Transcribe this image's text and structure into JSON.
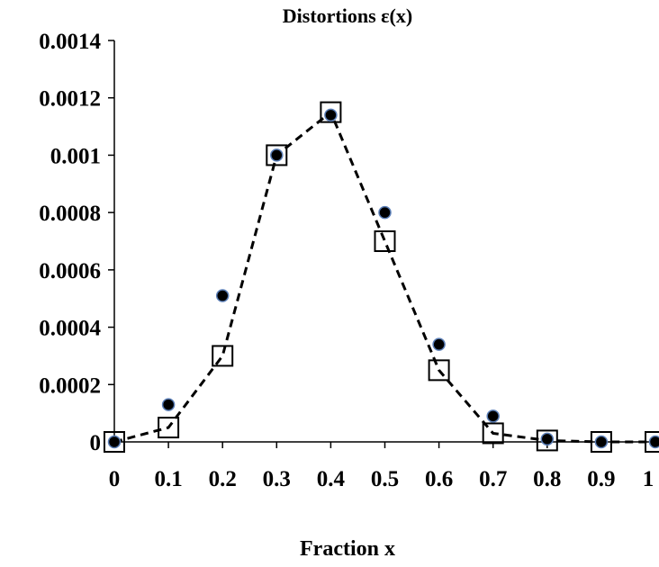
{
  "chart_data": {
    "type": "scatter",
    "title": "Distortions  ε(x)",
    "xlabel": "Fraction x",
    "ylabel": "",
    "xlim": [
      0,
      1
    ],
    "ylim": [
      0,
      0.0014
    ],
    "xticks": [
      "0",
      "0.1",
      "0.2",
      "0.3",
      "0.4",
      "0.5",
      "0.6",
      "0.7",
      "0.8",
      "0.9",
      "1"
    ],
    "yticks": [
      "0",
      "0.0002",
      "0.0004",
      "0.0006",
      "0.0008",
      "0.001",
      "0.0012",
      "0.0014"
    ],
    "grid": false,
    "legend": "none",
    "series": [
      {
        "marker": "open-square",
        "line": "dashed",
        "color": "#000000",
        "x": [
          0,
          0.1,
          0.2,
          0.3,
          0.4,
          0.5,
          0.6,
          0.7,
          0.8,
          0.9,
          1
        ],
        "y": [
          0,
          5e-05,
          0.0003,
          0.001,
          0.00115,
          0.0007,
          0.00025,
          3e-05,
          5e-06,
          0,
          0
        ]
      },
      {
        "marker": "filled-circle",
        "line": "none",
        "color": "#000000",
        "edge_color": "#5b7fb8",
        "x": [
          0,
          0.1,
          0.2,
          0.3,
          0.4,
          0.5,
          0.6,
          0.7,
          0.8,
          0.9,
          1
        ],
        "y": [
          0,
          0.00013,
          0.00051,
          0.001,
          0.00114,
          0.0008,
          0.00034,
          9e-05,
          1e-05,
          0,
          0
        ]
      }
    ]
  }
}
